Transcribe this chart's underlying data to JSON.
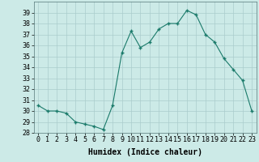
{
  "x": [
    0,
    1,
    2,
    3,
    4,
    5,
    6,
    7,
    8,
    9,
    10,
    11,
    12,
    13,
    14,
    15,
    16,
    17,
    18,
    19,
    20,
    21,
    22,
    23
  ],
  "y": [
    30.5,
    30.0,
    30.0,
    29.8,
    29.0,
    28.8,
    28.6,
    28.3,
    30.5,
    35.3,
    37.3,
    35.8,
    36.3,
    37.5,
    38.0,
    38.0,
    39.2,
    38.8,
    37.0,
    36.3,
    34.8,
    33.8,
    32.8,
    30.0
  ],
  "line_color": "#1a7a6a",
  "marker": "+",
  "marker_size": 3.5,
  "bg_color": "#cceae7",
  "grid_color": "#aacccc",
  "xlabel": "Humidex (Indice chaleur)",
  "ylim": [
    28,
    40
  ],
  "xlim": [
    -0.5,
    23.5
  ],
  "yticks": [
    28,
    29,
    30,
    31,
    32,
    33,
    34,
    35,
    36,
    37,
    38,
    39
  ],
  "xticks": [
    0,
    1,
    2,
    3,
    4,
    5,
    6,
    7,
    8,
    9,
    10,
    11,
    12,
    13,
    14,
    15,
    16,
    17,
    18,
    19,
    20,
    21,
    22,
    23
  ],
  "xlabel_fontsize": 7,
  "tick_fontsize": 6
}
